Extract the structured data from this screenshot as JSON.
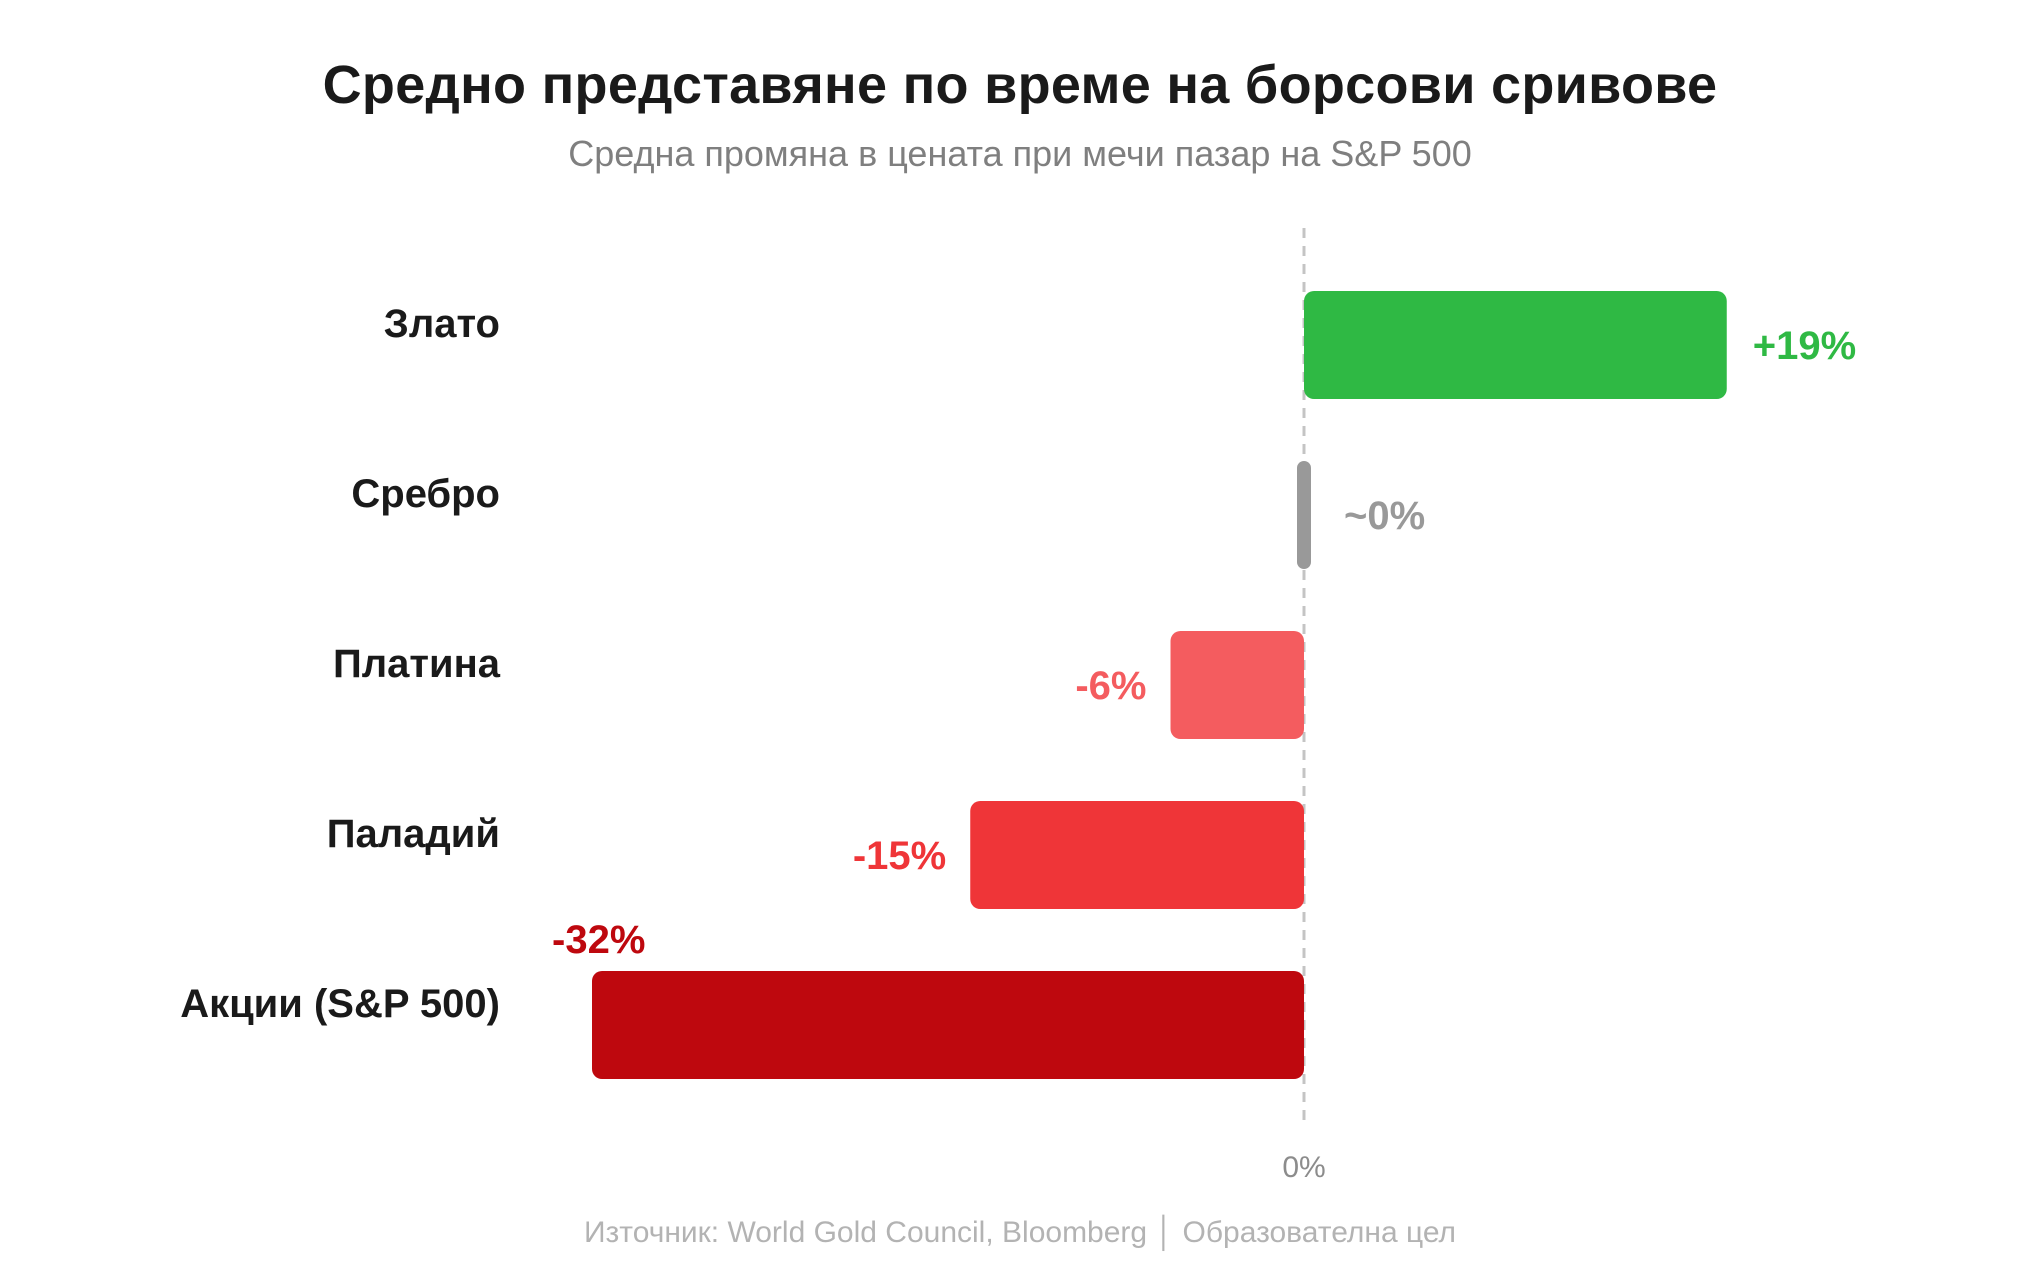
{
  "chart_data": {
    "type": "bar",
    "orientation": "horizontal",
    "title": "Средно представяне по време на борсови сривове",
    "subtitle": "Средна промяна в цената при мечи пазар на S&P 500",
    "categories": [
      "Злато",
      "Сребро",
      "Платина",
      "Паладий",
      "Акции (S&P 500)"
    ],
    "values": [
      19,
      0,
      -6,
      -15,
      -32
    ],
    "value_labels": [
      "+19%",
      "~0%",
      "-6%",
      "-15%",
      "-32%"
    ],
    "bar_colors": [
      "#2fb944",
      "#999999",
      "#f45c5f",
      "#ef3538",
      "#be080e"
    ],
    "label_colors": [
      "#2fb944",
      "#999999",
      "#f45c5f",
      "#ef3538",
      "#be080e"
    ],
    "zero_line_label": "0%",
    "xlim": [
      -32,
      19
    ],
    "grid": false,
    "legend": "none",
    "source": "Източник: World Gold Council, Bloomberg │ Образователна цел"
  }
}
